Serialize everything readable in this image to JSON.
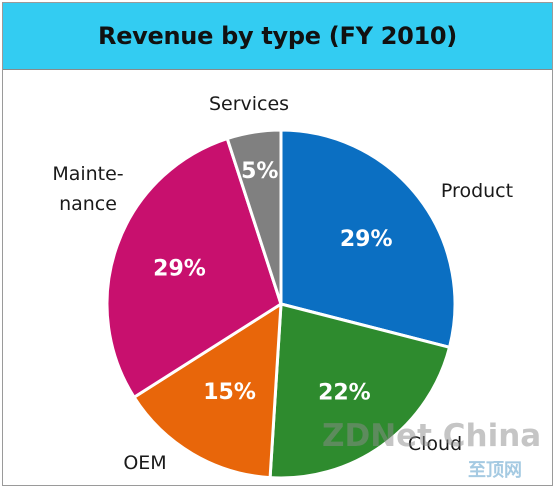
{
  "chart_data": {
    "type": "pie",
    "title": "Revenue by type (FY 2010)",
    "slices": [
      {
        "label": "Product",
        "value": 29,
        "value_label": "29%",
        "color": "#0b6fc2"
      },
      {
        "label": "Cloud",
        "value": 22,
        "value_label": "22%",
        "color": "#2e8b2e"
      },
      {
        "label": "OEM",
        "value": 15,
        "value_label": "15%",
        "color": "#e8660a"
      },
      {
        "label": "Maintenance",
        "label_lines": [
          "Mainte-",
          "nance"
        ],
        "value": 29,
        "value_label": "29%",
        "color": "#c8106e"
      },
      {
        "label": "Services",
        "value": 5,
        "value_label": "5%",
        "color": "#808080"
      }
    ],
    "start_angle_deg": 0,
    "direction": "clockwise",
    "header_color": "#33ccf2"
  },
  "watermark": {
    "text": "ZDNet China",
    "subtext": "至顶网"
  }
}
